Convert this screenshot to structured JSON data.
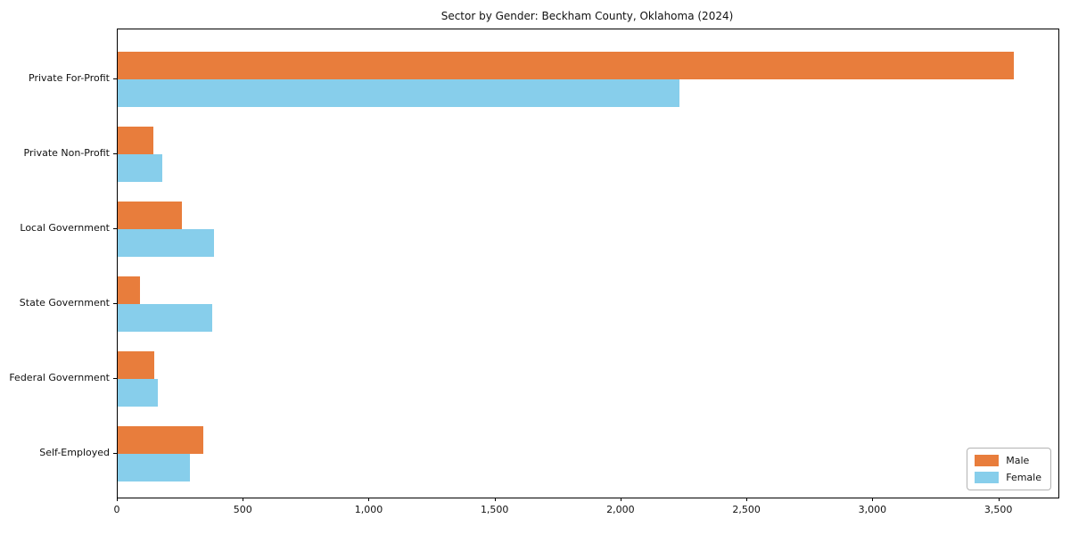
{
  "chart_data": {
    "type": "bar",
    "orientation": "horizontal",
    "title": "Sector by Gender: Beckham County, Oklahoma (2024)",
    "categories": [
      "Private For-Profit",
      "Private Non-Profit",
      "Local Government",
      "State Government",
      "Federal Government",
      "Self-Employed"
    ],
    "series": [
      {
        "name": "Male",
        "color": "#e87d3c",
        "values": [
          3557,
          141,
          254,
          89,
          144,
          339
        ]
      },
      {
        "name": "Female",
        "color": "#87ceeb",
        "values": [
          2232,
          176,
          381,
          374,
          158,
          286
        ]
      }
    ],
    "xlabel": "",
    "ylabel": "",
    "xlim": [
      0,
      3735
    ],
    "xticks": [
      0,
      500,
      1000,
      1500,
      2000,
      2500,
      3000,
      3500
    ],
    "xtick_labels": [
      "0",
      "500",
      "1,000",
      "1,500",
      "2,000",
      "2,500",
      "3,000",
      "3,500"
    ],
    "grid": false,
    "legend": {
      "position": "lower right"
    },
    "colors": {
      "axis": "#000000",
      "text": "#111111",
      "legend_border": "#b3b3b3"
    }
  }
}
